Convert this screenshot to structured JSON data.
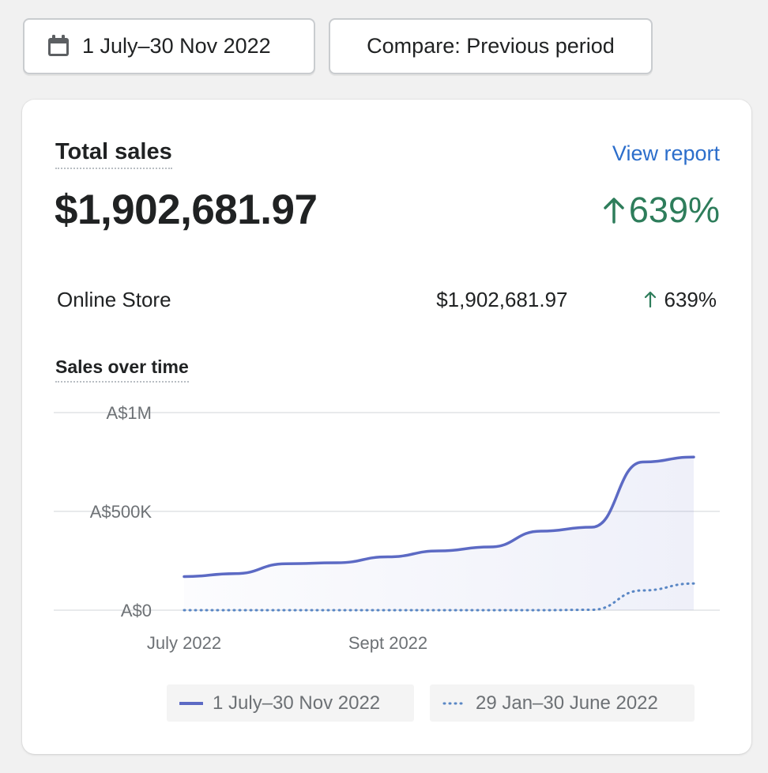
{
  "toolbar": {
    "date_range_label": "1 July–30 Nov 2022",
    "compare_label": "Compare: Previous period"
  },
  "card": {
    "title": "Total sales",
    "view_report_label": "View report",
    "total_value": "$1,902,681.97",
    "total_change": "639%",
    "breakdown": [
      {
        "channel": "Online Store",
        "amount": "$1,902,681.97",
        "change": "639%"
      }
    ],
    "chart_title": "Sales over time"
  },
  "colors": {
    "primary_line": "#5c6ac4",
    "comparison_line": "#5a87c5",
    "positive": "#2e7d5b",
    "link": "#2c6ecb"
  },
  "chart_data": {
    "type": "line",
    "y_tick_labels": [
      "A$0",
      "A$500K",
      "A$1M"
    ],
    "x_tick_labels": [
      "July 2022",
      "Sept 2022"
    ],
    "ylim": [
      0,
      1000000
    ],
    "x": [
      0,
      0.5,
      1,
      1.5,
      2,
      2.5,
      3,
      3.5,
      4,
      4.5,
      5
    ],
    "series": [
      {
        "name": "1 July–30 Nov 2022",
        "style": "solid",
        "values": [
          170000,
          185000,
          235000,
          240000,
          270000,
          300000,
          320000,
          400000,
          420000,
          750000,
          775000
        ]
      },
      {
        "name": "29 Jan–30 June 2022",
        "style": "dotted",
        "values": [
          0,
          0,
          0,
          0,
          0,
          0,
          0,
          0,
          2000,
          100000,
          135000
        ]
      }
    ],
    "x_tick_positions": [
      0,
      2
    ],
    "grid": true,
    "legend": "bottom"
  }
}
